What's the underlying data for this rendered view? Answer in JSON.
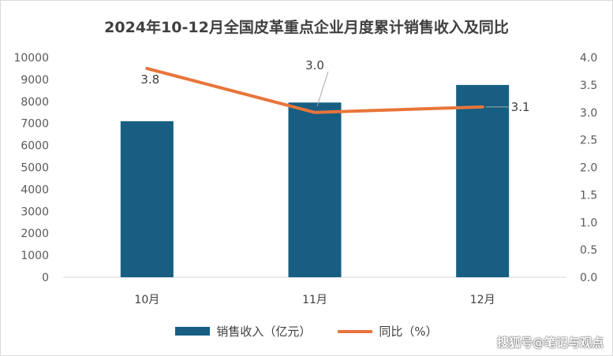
{
  "chart_data": {
    "type": "bar+line",
    "title": "2024年10-12月全国皮革重点企业月度累计销售收入及同比",
    "categories": [
      "10月",
      "11月",
      "12月"
    ],
    "series": [
      {
        "name": "销售收入（亿元）",
        "type": "bar",
        "axis": "left",
        "color": "#175e82",
        "values": [
          7100,
          7950,
          8750
        ]
      },
      {
        "name": "同比（%）",
        "type": "line",
        "axis": "right",
        "color": "#e8753a",
        "values": [
          3.8,
          3.0,
          3.1
        ],
        "labels": [
          "3.8",
          "3.0",
          "3.1"
        ]
      }
    ],
    "y_left": {
      "min": 0,
      "max": 10000,
      "step": 1000,
      "ticks": [
        "0",
        "1000",
        "2000",
        "3000",
        "4000",
        "5000",
        "6000",
        "7000",
        "8000",
        "9000",
        "10000"
      ]
    },
    "y_right": {
      "min": 0,
      "max": 4,
      "step": 0.5,
      "ticks": [
        "0.0",
        "0.5",
        "1.0",
        "1.5",
        "2.0",
        "2.5",
        "3.0",
        "3.5",
        "4.0"
      ]
    },
    "legend_position": "bottom",
    "grid": false
  },
  "watermark": "搜狐号@笔记与观点"
}
